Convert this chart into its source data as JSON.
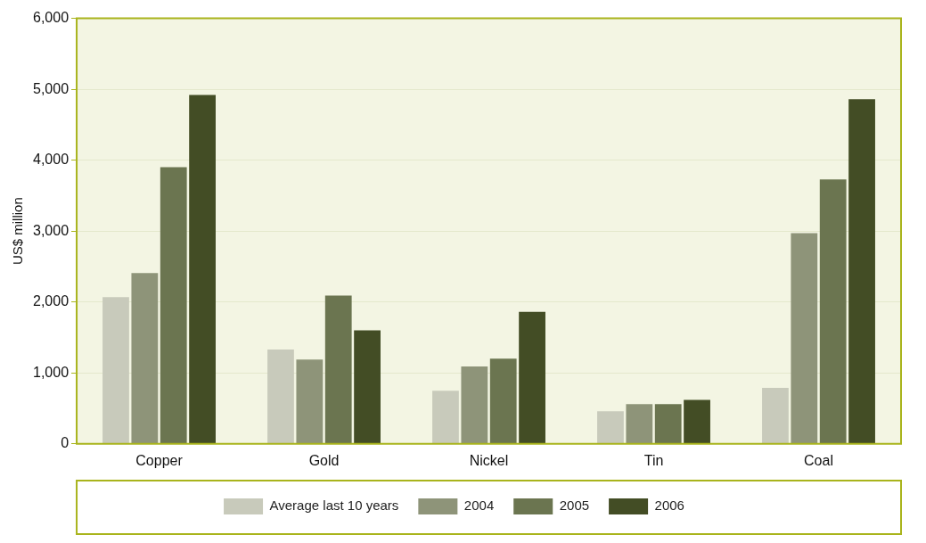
{
  "chart_data": {
    "type": "bar",
    "ylabel": "US$ million",
    "categories": [
      "Copper",
      "Gold",
      "Nickel",
      "Tin",
      "Coal"
    ],
    "series": [
      {
        "name": "Average last 10 years",
        "color": "#c8cabb",
        "values": [
          2070,
          1330,
          750,
          460,
          790
        ]
      },
      {
        "name": "2004",
        "color": "#8e9479",
        "values": [
          2410,
          1190,
          1090,
          560,
          2970
        ]
      },
      {
        "name": "2005",
        "color": "#6b7550",
        "values": [
          3900,
          2090,
          1200,
          560,
          3730
        ]
      },
      {
        "name": "2006",
        "color": "#434d25",
        "values": [
          4920,
          1600,
          1860,
          620,
          4860
        ]
      }
    ],
    "ylim": [
      0,
      6000
    ],
    "yticks": [
      {
        "value": 0,
        "label": "0"
      },
      {
        "value": 1000,
        "label": "1,000"
      },
      {
        "value": 2000,
        "label": "2,000"
      },
      {
        "value": 3000,
        "label": "3,000"
      },
      {
        "value": 4000,
        "label": "4,000"
      },
      {
        "value": 5000,
        "label": "5,000"
      },
      {
        "value": 6000,
        "label": "6,000"
      }
    ],
    "grid": "y",
    "legend": "bottom"
  }
}
